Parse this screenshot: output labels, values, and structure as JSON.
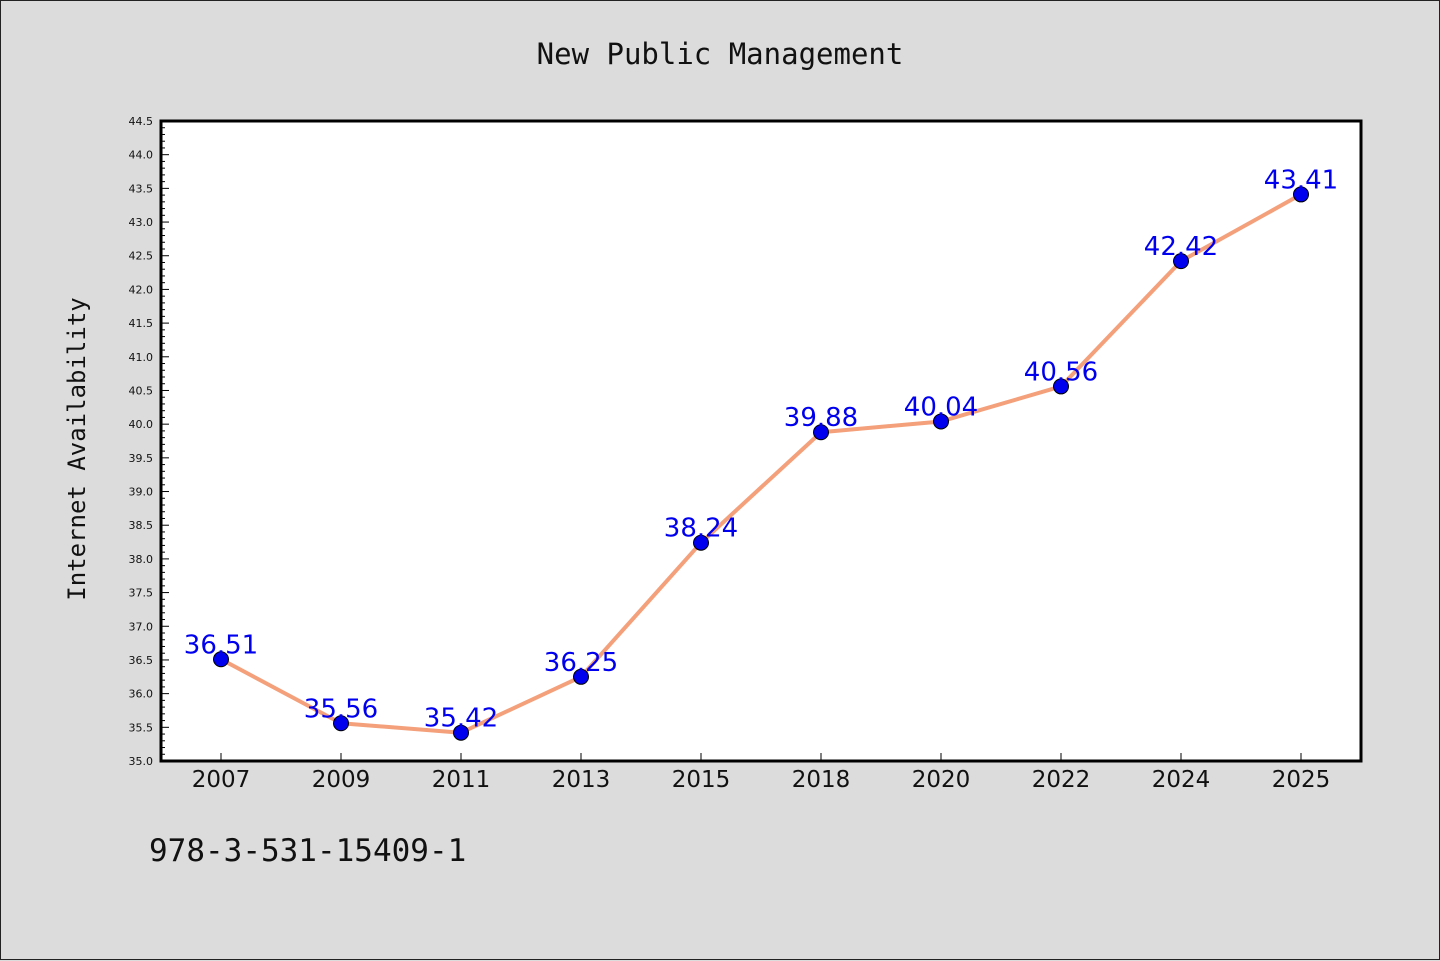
{
  "chart_data": {
    "type": "line",
    "title": "New Public Management",
    "xlabel": "",
    "ylabel": "Internet Availability",
    "categories": [
      "2007",
      "2009",
      "2011",
      "2013",
      "2015",
      "2018",
      "2020",
      "2022",
      "2024",
      "2025"
    ],
    "series": [
      {
        "values": [
          36.51,
          35.56,
          35.42,
          36.25,
          38.24,
          39.88,
          40.04,
          40.56,
          42.42,
          43.41
        ]
      }
    ],
    "data_labels": [
      "36.51",
      "35.56",
      "35.42",
      "36.25",
      "38.24",
      "39.88",
      "40.04",
      "40.56",
      "42.42",
      "43.41"
    ],
    "ylim": [
      35.0,
      44.5
    ],
    "yticks": [
      "35.0",
      "35.5",
      "36.0",
      "36.5",
      "37.0",
      "37.5",
      "38.0",
      "38.5",
      "39.0",
      "39.5",
      "40.0",
      "40.5",
      "41.0",
      "41.5",
      "42.0",
      "42.5",
      "43.0",
      "43.5",
      "44.0",
      "44.5"
    ],
    "grid": false,
    "colors": {
      "line": "#f4a07a",
      "marker": "#0000ee",
      "labels": "#0000ee",
      "background": "#dcdcdc",
      "plot_background": "#ffffff"
    }
  },
  "footer": {
    "code": "978-3-531-15409-1"
  }
}
